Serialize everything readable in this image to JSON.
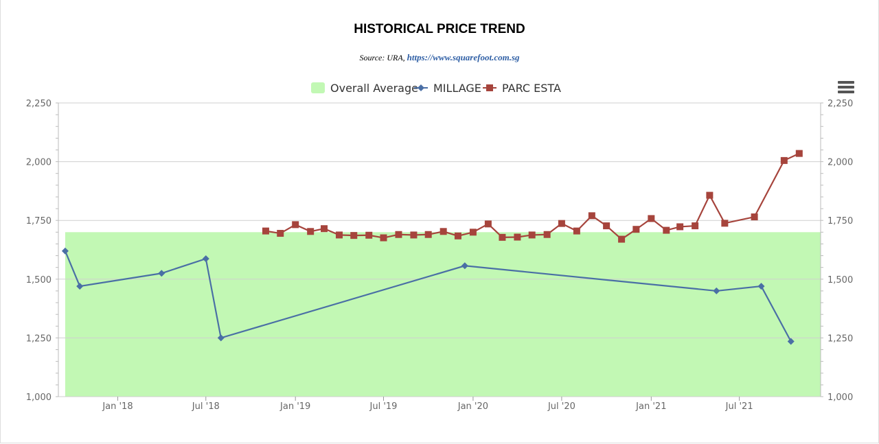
{
  "chart_data": {
    "type": "line",
    "title": "HISTORICAL PRICE TREND",
    "subtitle": {
      "source_prefix": "Source: URA,",
      "link": "https://www.squarefoot.com.sg"
    },
    "ylim": [
      1000,
      2250
    ],
    "yticks": [
      1000,
      1250,
      1500,
      1750,
      2000,
      2250
    ],
    "ytick_labels": [
      "1,000",
      "1,250",
      "1,500",
      "1,750",
      "2,000",
      "2,250"
    ],
    "xlim": [
      "2017-09-01",
      "2021-12-15"
    ],
    "xtick_labels": [
      {
        "date": "2018-01-01",
        "label": "Jan '18"
      },
      {
        "date": "2018-07-01",
        "label": "Jul '18"
      },
      {
        "date": "2019-01-01",
        "label": "Jan '19"
      },
      {
        "date": "2019-07-01",
        "label": "Jul '19"
      },
      {
        "date": "2020-01-01",
        "label": "Jan '20"
      },
      {
        "date": "2020-07-01",
        "label": "Jul '20"
      },
      {
        "date": "2021-01-01",
        "label": "Jan '21"
      },
      {
        "date": "2021-07-01",
        "label": "Jul '21"
      }
    ],
    "grid": true,
    "legend_position": "top-center",
    "legend": [
      {
        "label": "Overall Average",
        "symbol": "area",
        "color": "#c2f8b4"
      },
      {
        "label": "MILLAGE",
        "symbol": "diamond",
        "color": "#4a6fa5"
      },
      {
        "label": "PARC ESTA",
        "symbol": "square",
        "color": "#a6443c"
      }
    ],
    "overall_average": {
      "name": "Overall Average",
      "value": 1700,
      "x_start": "2017-09-15",
      "x_end": "2021-12-15",
      "color": "#c2f8b4"
    },
    "series": [
      {
        "name": "MILLAGE",
        "color": "#4a6fa5",
        "marker": "diamond",
        "points": [
          [
            "2017-09-15",
            1620
          ],
          [
            "2017-10-15",
            1470
          ],
          [
            "2018-04-01",
            1525
          ],
          [
            "2018-07-01",
            1587
          ],
          [
            "2018-08-01",
            1250
          ],
          [
            "2019-12-15",
            1557
          ],
          [
            "2021-05-15",
            1450
          ],
          [
            "2021-08-15",
            1470
          ],
          [
            "2021-10-15",
            1235
          ]
        ]
      },
      {
        "name": "PARC ESTA",
        "color": "#a6443c",
        "marker": "square",
        "points": [
          [
            "2018-11-01",
            1705
          ],
          [
            "2018-12-01",
            1695
          ],
          [
            "2019-01-01",
            1732
          ],
          [
            "2019-02-01",
            1703
          ],
          [
            "2019-03-01",
            1715
          ],
          [
            "2019-04-01",
            1688
          ],
          [
            "2019-05-01",
            1686
          ],
          [
            "2019-06-01",
            1687
          ],
          [
            "2019-07-01",
            1676
          ],
          [
            "2019-08-01",
            1690
          ],
          [
            "2019-09-01",
            1688
          ],
          [
            "2019-10-01",
            1690
          ],
          [
            "2019-11-01",
            1703
          ],
          [
            "2019-12-01",
            1684
          ],
          [
            "2020-01-01",
            1700
          ],
          [
            "2020-02-01",
            1735
          ],
          [
            "2020-03-01",
            1678
          ],
          [
            "2020-04-01",
            1679
          ],
          [
            "2020-05-01",
            1688
          ],
          [
            "2020-06-01",
            1690
          ],
          [
            "2020-07-01",
            1737
          ],
          [
            "2020-08-01",
            1705
          ],
          [
            "2020-09-01",
            1770
          ],
          [
            "2020-10-01",
            1727
          ],
          [
            "2020-11-01",
            1670
          ],
          [
            "2020-12-01",
            1712
          ],
          [
            "2021-01-01",
            1758
          ],
          [
            "2021-02-01",
            1708
          ],
          [
            "2021-03-01",
            1723
          ],
          [
            "2021-04-01",
            1727
          ],
          [
            "2021-05-01",
            1857
          ],
          [
            "2021-06-01",
            1738
          ],
          [
            "2021-08-01",
            1765
          ],
          [
            "2021-10-01",
            2005
          ],
          [
            "2021-11-01",
            2035
          ]
        ]
      }
    ]
  }
}
